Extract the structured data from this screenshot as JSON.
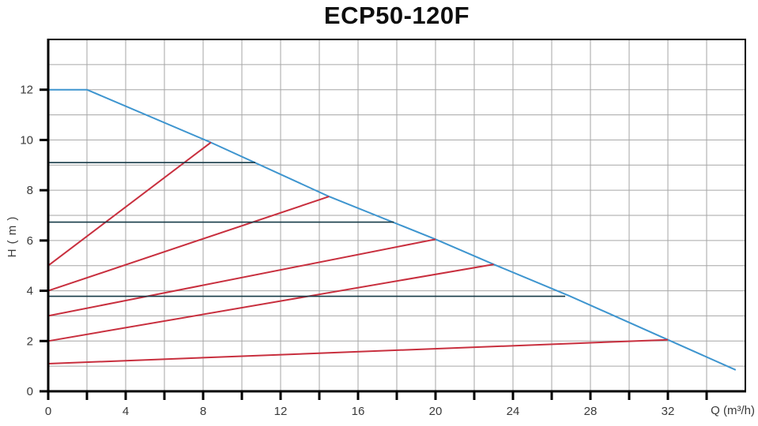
{
  "page": {
    "background": "#ffffff"
  },
  "chart_data": {
    "type": "line",
    "title": "ECP50-120F",
    "xlabel": "Q (m³/h)",
    "ylabel": "H ( m )",
    "xlim": [
      0,
      36
    ],
    "ylim": [
      0,
      14
    ],
    "grid": true,
    "x_grid_step": 2,
    "y_grid_step": 1,
    "x_tick_step": 2,
    "x_tick_max": 34,
    "y_tick_step": 2,
    "y_tick_max": 12,
    "x_tick_labels": [
      0,
      4,
      8,
      12,
      16,
      20,
      24,
      28,
      32
    ],
    "y_tick_labels": [
      0,
      2,
      4,
      6,
      8,
      10,
      12
    ],
    "legend_position": "none",
    "colors": {
      "grid": "#a6a6a6",
      "frame": "#000000",
      "tick": "#000000",
      "tick_label": "#3a3a3a",
      "title": "#0d0d0d",
      "pump_curve": "#3e95cf",
      "speed_curves": "#c82f3e",
      "head_lines": "#163a47"
    },
    "series": [
      {
        "name": "pump-curve-max-speed",
        "color": "#3e95cf",
        "width": 2,
        "points": [
          [
            0,
            12
          ],
          [
            2,
            12
          ],
          [
            8.4,
            9.9
          ],
          [
            14.5,
            7.75
          ],
          [
            20,
            6.05
          ],
          [
            23,
            5.05
          ],
          [
            26.9,
            3.8
          ],
          [
            32,
            2.05
          ],
          [
            35.5,
            0.85
          ]
        ]
      },
      {
        "name": "speed-curve-1",
        "color": "#c82f3e",
        "width": 2,
        "points": [
          [
            0,
            5
          ],
          [
            8.4,
            9.9
          ]
        ]
      },
      {
        "name": "speed-curve-2",
        "color": "#c82f3e",
        "width": 2,
        "points": [
          [
            0,
            4
          ],
          [
            14.5,
            7.75
          ]
        ]
      },
      {
        "name": "speed-curve-3",
        "color": "#c82f3e",
        "width": 2,
        "points": [
          [
            0,
            3
          ],
          [
            20,
            6.05
          ]
        ]
      },
      {
        "name": "speed-curve-4",
        "color": "#c82f3e",
        "width": 2,
        "points": [
          [
            0,
            2
          ],
          [
            23,
            5.05
          ]
        ]
      },
      {
        "name": "speed-curve-5",
        "color": "#c82f3e",
        "width": 2,
        "points": [
          [
            0,
            1.1
          ],
          [
            32,
            2.05
          ]
        ]
      },
      {
        "name": "head-reference-line-1",
        "color": "#163a47",
        "width": 1.6,
        "points": [
          [
            0,
            9.1
          ],
          [
            10.7,
            9.1
          ]
        ]
      },
      {
        "name": "head-reference-line-2",
        "color": "#163a47",
        "width": 1.6,
        "points": [
          [
            0,
            6.73
          ],
          [
            17.85,
            6.73
          ]
        ]
      },
      {
        "name": "head-reference-line-3",
        "color": "#163a47",
        "width": 1.6,
        "points": [
          [
            0,
            3.78
          ],
          [
            26.7,
            3.78
          ]
        ]
      }
    ]
  }
}
